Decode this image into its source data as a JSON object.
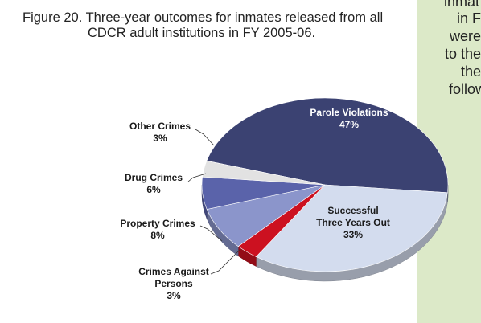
{
  "caption": {
    "line1": "Figure 20.  Three-year outcomes for inmates released from all",
    "line2": "CDCR adult institutions in FY 2005-06."
  },
  "side_text": [
    "inmat",
    "in F",
    "were",
    "to the",
    "the",
    "follow"
  ],
  "chart_data": {
    "type": "pie",
    "title": "",
    "slices": [
      {
        "label": "Parole Violations",
        "value": 47,
        "value_label": "47%",
        "color": "#3b4272"
      },
      {
        "label": "Successful Three Years Out",
        "label_lines": [
          "Successful",
          "Three Years Out"
        ],
        "value": 33,
        "value_label": "33%",
        "color": "#d3dcee"
      },
      {
        "label": "Crimes Against Persons",
        "label_lines": [
          "Crimes Against",
          "Persons"
        ],
        "value": 3,
        "value_label": "3%",
        "color": "#cc1120"
      },
      {
        "label": "Property Crimes",
        "value": 8,
        "value_label": "8%",
        "color": "#8b95cb"
      },
      {
        "label": "Drug Crimes",
        "value": 6,
        "value_label": "6%",
        "color": "#5a63aa"
      },
      {
        "label": "Other Crimes",
        "value": 3,
        "value_label": "3%",
        "color": "#e2e2e2"
      }
    ]
  }
}
